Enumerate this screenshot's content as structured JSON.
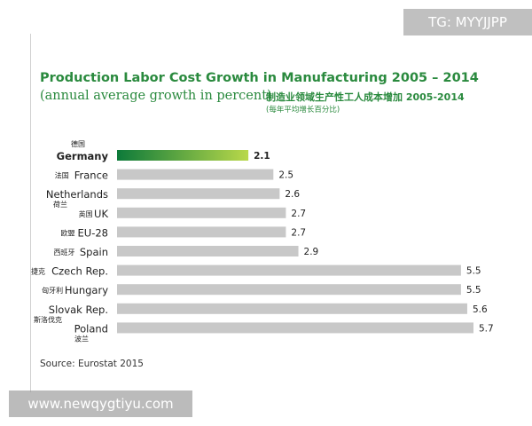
{
  "badge": "TG: MYYJJPP",
  "watermark": "www.newqygtiyu.com",
  "colors": {
    "title": "#2a8a3e",
    "bar": "#c8c8c8",
    "highlight_start": "#0d7a3a",
    "highlight_end": "#b9d84a"
  },
  "chart_data": {
    "type": "bar",
    "orientation": "horizontal",
    "title": "Production Labor Cost Growth in Manufacturing 2005 – 2014",
    "subtitle": "(annual average growth in percent)",
    "title_cn": "制造业领域生产性工人成本增加 2005-2014",
    "subtitle_cn": "(每年平均增长百分比)",
    "categories": [
      "Germany",
      "France",
      "Netherlands",
      "UK",
      "EU-28",
      "Spain",
      "Czech Rep.",
      "Hungary",
      "Slovak Rep.",
      "Poland"
    ],
    "categories_cn": [
      "德国",
      "法国",
      "荷兰",
      "英国",
      "欧盟",
      "西班牙",
      "捷克",
      "匈牙利",
      "斯洛伐克",
      "波兰"
    ],
    "values": [
      2.1,
      2.5,
      2.6,
      2.7,
      2.7,
      2.9,
      5.5,
      5.5,
      5.6,
      5.7
    ],
    "value_labels": [
      "2.1",
      "2.5",
      "2.6",
      "2.7",
      "2.7",
      "2.9",
      "5.5",
      "5.5",
      "5.6",
      "5.7"
    ],
    "highlight": "Germany",
    "xlim": [
      0,
      5.7
    ],
    "grid": false,
    "legend": "none",
    "source": "Source: Eurostat 2015"
  }
}
